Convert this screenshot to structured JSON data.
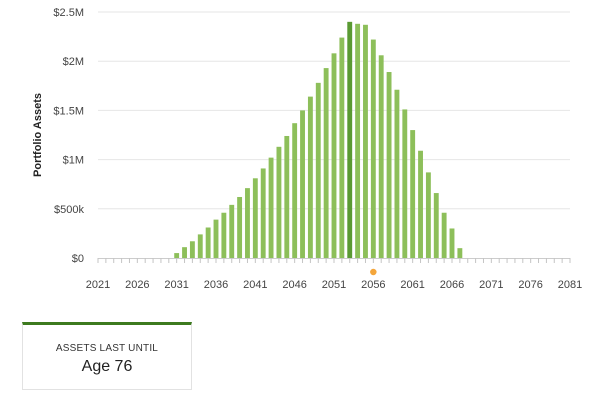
{
  "chart_data": {
    "type": "bar",
    "ylabel": "Portfolio Assets",
    "ylim": [
      0,
      2500000
    ],
    "y_ticks": [
      {
        "value": 0,
        "label": "$0"
      },
      {
        "value": 500000,
        "label": "$500k"
      },
      {
        "value": 1000000,
        "label": "$1M"
      },
      {
        "value": 1500000,
        "label": "$1.5M"
      },
      {
        "value": 2000000,
        "label": "$2M"
      },
      {
        "value": 2500000,
        "label": "$2.5M"
      }
    ],
    "xlim": [
      2021,
      2081
    ],
    "x_ticks": [
      "2021",
      "2026",
      "2031",
      "2036",
      "2041",
      "2046",
      "2051",
      "2056",
      "2061",
      "2066",
      "2071",
      "2076",
      "2081"
    ],
    "grid": true,
    "highlight_year": 2053,
    "marker_year": 2056,
    "colors": {
      "bar": "#8dbf5a",
      "bar_highlight": "#5a9a33",
      "marker": "#f4a63b",
      "grid": "#e6e6e6"
    },
    "x": [
      2031,
      2032,
      2033,
      2034,
      2035,
      2036,
      2037,
      2038,
      2039,
      2040,
      2041,
      2042,
      2043,
      2044,
      2045,
      2046,
      2047,
      2048,
      2049,
      2050,
      2051,
      2052,
      2053,
      2054,
      2055,
      2056,
      2057,
      2058,
      2059,
      2060,
      2061,
      2062,
      2063,
      2064,
      2065,
      2066,
      2067
    ],
    "values": [
      50000,
      110000,
      170000,
      240000,
      310000,
      390000,
      460000,
      540000,
      620000,
      710000,
      810000,
      910000,
      1020000,
      1130000,
      1240000,
      1370000,
      1500000,
      1640000,
      1780000,
      1930000,
      2080000,
      2240000,
      2400000,
      2380000,
      2370000,
      2220000,
      2060000,
      1890000,
      1710000,
      1510000,
      1300000,
      1090000,
      870000,
      660000,
      460000,
      300000,
      100000
    ]
  },
  "summary": {
    "label": "ASSETS LAST UNTIL",
    "value": "Age 76"
  }
}
